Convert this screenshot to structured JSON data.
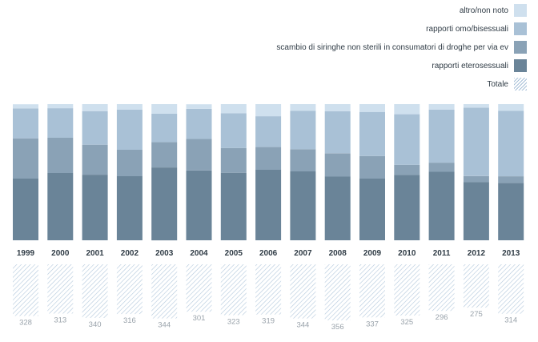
{
  "chart_data": {
    "type": "bar",
    "stacked": true,
    "categories": [
      "1999",
      "2000",
      "2001",
      "2002",
      "2003",
      "2004",
      "2005",
      "2006",
      "2007",
      "2008",
      "2009",
      "2010",
      "2011",
      "2012",
      "2013"
    ],
    "series": [
      {
        "name": "rapporti eterosessuali",
        "color": "#6a8498",
        "values": [
          45.3,
          49.4,
          48.2,
          47.1,
          53.5,
          51.2,
          49.6,
          51.8,
          50.6,
          46.8,
          45.3,
          48.0,
          50.3,
          42.8,
          42.2
        ]
      },
      {
        "name": "scambio di siringhe non sterili in consumatori di droghe per via ev",
        "color": "#8aa2b6",
        "values": [
          29.6,
          25.9,
          22.0,
          19.4,
          18.6,
          23.3,
          18.1,
          16.7,
          16.3,
          17.1,
          16.6,
          7.4,
          6.7,
          4.4,
          4.8
        ]
      },
      {
        "name": "rapporti omo/bisessuali",
        "color": "#a9c1d6",
        "values": [
          22.0,
          21.7,
          24.7,
          29.4,
          20.9,
          22.1,
          25.6,
          22.6,
          28.1,
          30.9,
          32.4,
          37.2,
          38.9,
          50.2,
          48.0
        ]
      },
      {
        "name": "altro/non noto",
        "color": "#cfe0ee",
        "values": [
          3.0,
          3.0,
          5.1,
          4.1,
          7.0,
          3.3,
          6.7,
          8.9,
          5.0,
          5.2,
          5.7,
          7.4,
          4.1,
          2.6,
          5.0
        ]
      }
    ],
    "totals": {
      "name": "Totale",
      "values": [
        328,
        313,
        340,
        316,
        344,
        301,
        323,
        319,
        344,
        356,
        337,
        325,
        296,
        275,
        314
      ]
    },
    "ylim": [
      0,
      100
    ]
  }
}
